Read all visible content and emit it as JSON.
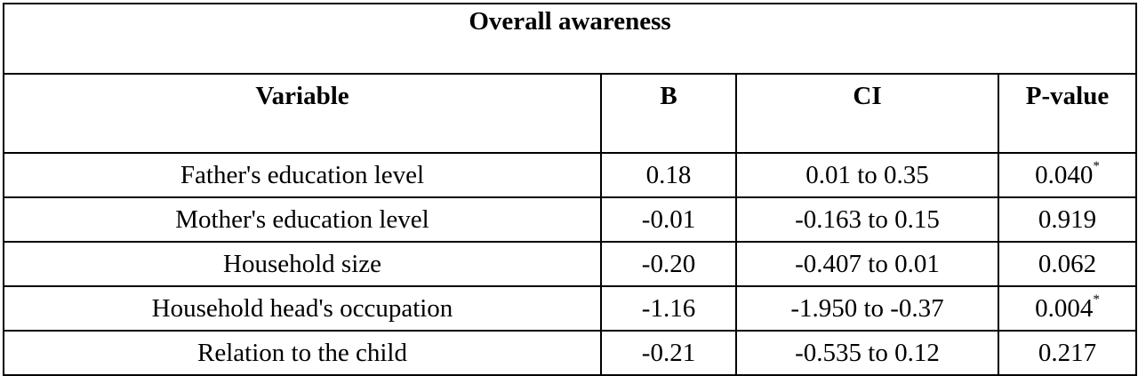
{
  "table": {
    "title": "Overall awareness",
    "headers": [
      "Variable",
      "B",
      "CI",
      "P-value"
    ],
    "rows": [
      {
        "variable": "Father's education level",
        "b": "0.18",
        "ci": "0.01 to 0.35",
        "p": "0.040",
        "sig": "*"
      },
      {
        "variable": "Mother's education level",
        "b": "-0.01",
        "ci": "-0.163 to 0.15",
        "p": "0.919",
        "sig": ""
      },
      {
        "variable": "Household size",
        "b": "-0.20",
        "ci": "-0.407 to 0.01",
        "p": "0.062",
        "sig": ""
      },
      {
        "variable": "Household head's occupation",
        "b": "-1.16",
        "ci": "-1.950 to -0.37",
        "p": "0.004",
        "sig": "*"
      },
      {
        "variable": "Relation to the child",
        "b": "-0.21",
        "ci": "-0.535 to 0.12",
        "p": "0.217",
        "sig": ""
      }
    ]
  }
}
